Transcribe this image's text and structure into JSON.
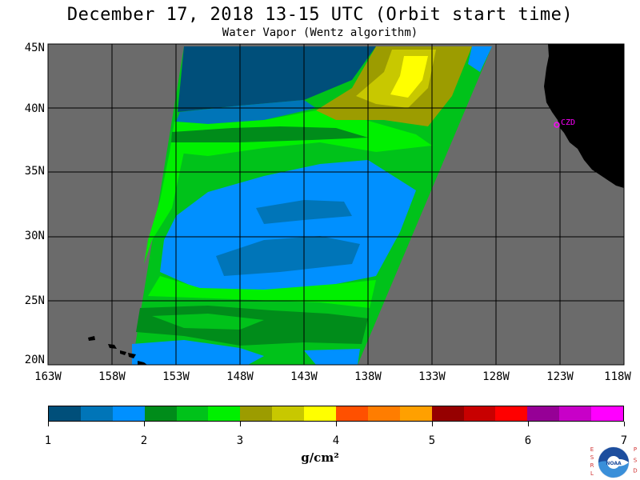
{
  "header": {
    "title": "December 17, 2018  13-15 UTC  (Orbit start time)",
    "subtitle": "Water Vapor (Wentz algorithm)"
  },
  "map": {
    "lat_labels": [
      "45N",
      "40N",
      "35N",
      "30N",
      "25N",
      "20N"
    ],
    "lon_labels": [
      "163W",
      "158W",
      "153W",
      "148W",
      "143W",
      "138W",
      "133W",
      "128W",
      "123W",
      "118W"
    ],
    "station_label": "CZD",
    "colors": {
      "ocean_no_data": "#6b6b6b",
      "land": "#000000",
      "grid": "#000000",
      "station": "#ff00ff"
    }
  },
  "colorbar": {
    "ticks": [
      "1",
      "2",
      "3",
      "4",
      "5",
      "6",
      "7"
    ],
    "unit": "g/cm²",
    "colors": [
      "#004f7a",
      "#0075b8",
      "#0090ff",
      "#008c1a",
      "#00c21a",
      "#00f000",
      "#9c9c00",
      "#c8c800",
      "#ffff00",
      "#ff5000",
      "#ff7d00",
      "#ffa000",
      "#960000",
      "#c80000",
      "#ff0000",
      "#960096",
      "#c800c8",
      "#ff00ff"
    ]
  },
  "logo": {
    "left_letters": "ESRL",
    "right_letters": "PSD",
    "badge_text": "NOAA"
  }
}
